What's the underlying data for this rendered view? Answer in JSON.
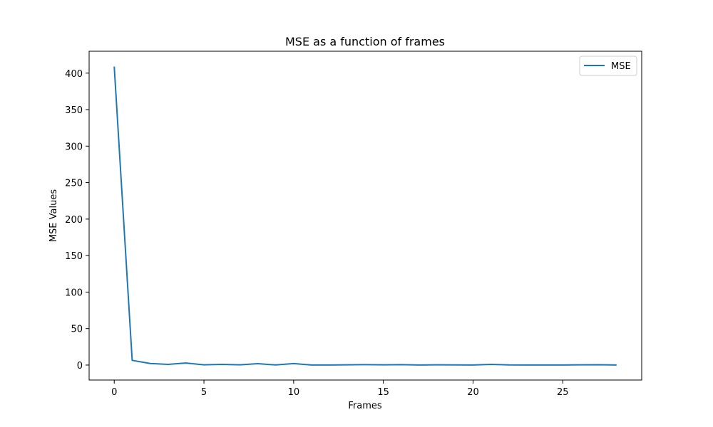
{
  "chart_data": {
    "type": "line",
    "title": "MSE as a function of frames",
    "xlabel": "Frames",
    "ylabel": "MSE Values",
    "xlim": [
      -1.4,
      29.4
    ],
    "ylim": [
      -20.5,
      430
    ],
    "xticks": [
      0,
      5,
      10,
      15,
      20,
      25
    ],
    "yticks": [
      0,
      50,
      100,
      150,
      200,
      250,
      300,
      350,
      400
    ],
    "grid": false,
    "legend_position": "upper right",
    "series": [
      {
        "name": "MSE",
        "color": "#1f77b4",
        "x": [
          0,
          1,
          2,
          3,
          4,
          5,
          6,
          7,
          8,
          9,
          10,
          11,
          12,
          13,
          14,
          15,
          16,
          17,
          18,
          19,
          20,
          21,
          22,
          23,
          24,
          25,
          26,
          27,
          28
        ],
        "y": [
          409,
          6.5,
          2.2,
          1.0,
          2.8,
          0.4,
          0.9,
          0.3,
          1.9,
          0.2,
          2.0,
          0.1,
          0.1,
          0.3,
          0.6,
          0.3,
          0.6,
          0.1,
          0.3,
          0.2,
          0.1,
          0.9,
          0.2,
          0.1,
          0.1,
          0.1,
          0.3,
          0.5,
          0.1
        ]
      }
    ]
  }
}
